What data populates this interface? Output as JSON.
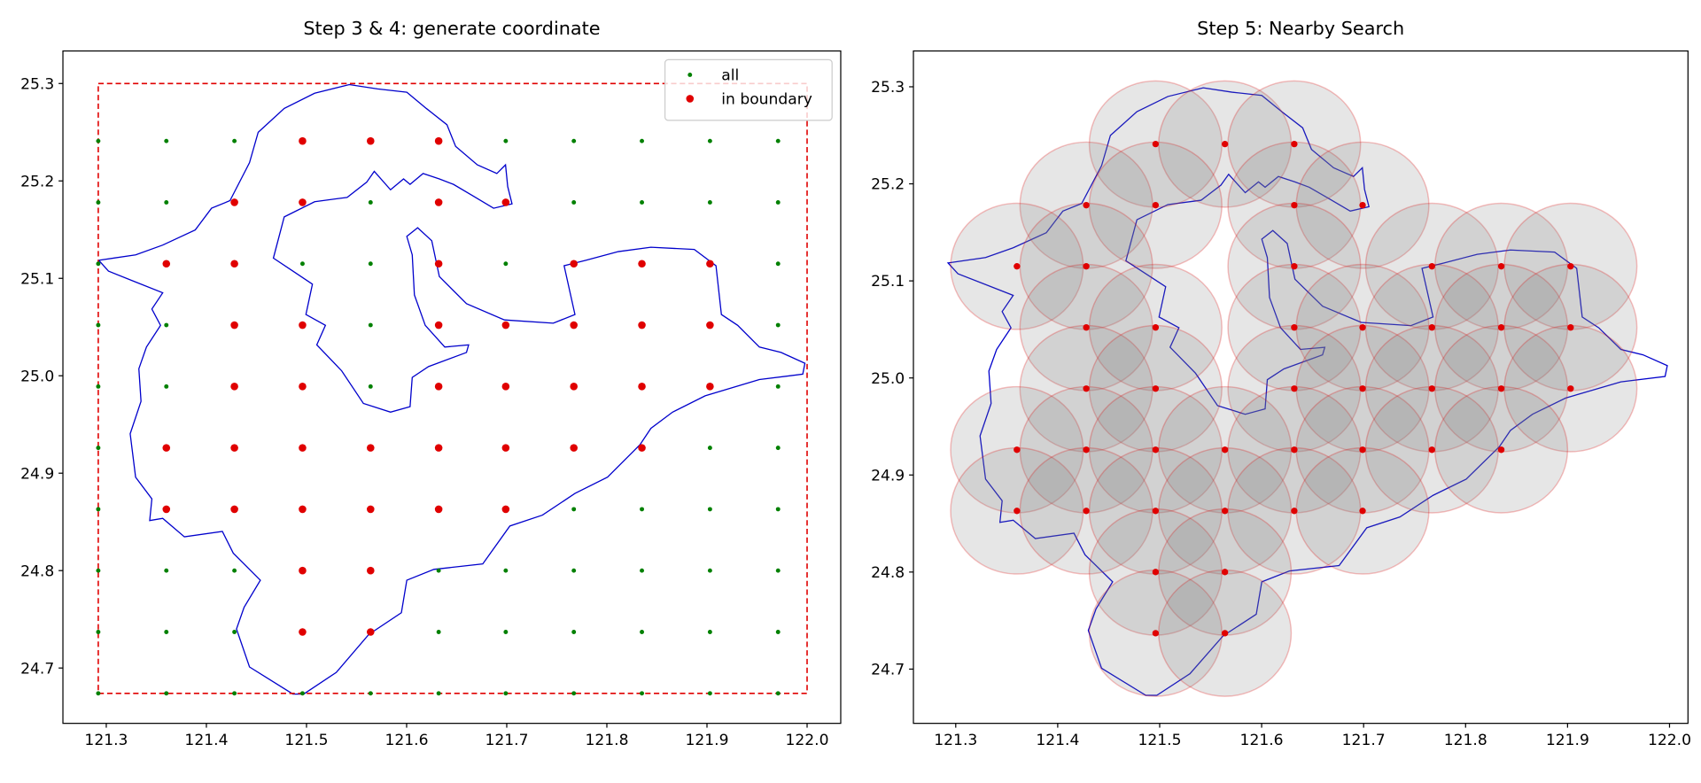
{
  "chart_data": [
    {
      "type": "scatter",
      "title": "Step 3 & 4: generate coordinate",
      "xlim": [
        121.2567,
        122.0336
      ],
      "ylim": [
        24.6432,
        25.3334
      ],
      "xticks": [
        121.3,
        121.4,
        121.5,
        121.6,
        121.7,
        121.8,
        121.9,
        {
          "value": 122,
          "label": "122.0"
        }
      ],
      "yticks": [
        24.7,
        24.8,
        24.9,
        {
          "value": 25,
          "label": "25.0"
        },
        25.1,
        25.2,
        25.3
      ],
      "legend": "upper right",
      "bounding_box": {
        "x": [
          121.292,
          122.0
        ],
        "y": [
          24.674,
          25.3
        ],
        "color": "#e00000"
      },
      "series": [
        {
          "name": "all",
          "color": "#008000",
          "x": [
            121.292,
            121.36,
            121.428,
            121.496,
            121.564,
            121.632,
            121.699,
            121.767,
            121.835,
            121.903,
            121.971,
            121.292,
            121.36,
            121.428,
            121.496,
            121.564,
            121.632,
            121.699,
            121.767,
            121.835,
            121.903,
            121.971,
            121.292,
            121.36,
            121.428,
            121.496,
            121.564,
            121.632,
            121.699,
            121.767,
            121.835,
            121.903,
            121.971,
            121.292,
            121.36,
            121.428,
            121.496,
            121.564,
            121.632,
            121.699,
            121.767,
            121.835,
            121.903,
            121.971,
            121.292,
            121.36,
            121.428,
            121.496,
            121.564,
            121.632,
            121.699,
            121.767,
            121.835,
            121.903,
            121.971,
            121.292,
            121.36,
            121.428,
            121.496,
            121.564,
            121.632,
            121.699,
            121.767,
            121.835,
            121.903,
            121.971,
            121.292,
            121.36,
            121.428,
            121.496,
            121.564,
            121.632,
            121.699,
            121.767,
            121.835,
            121.903,
            121.971,
            121.292,
            121.36,
            121.428,
            121.496,
            121.564,
            121.632,
            121.699,
            121.767,
            121.835,
            121.903,
            121.971,
            121.292,
            121.36,
            121.428,
            121.496,
            121.564,
            121.632,
            121.699,
            121.767,
            121.835,
            121.903,
            121.971,
            121.292,
            121.36,
            121.428,
            121.496,
            121.564,
            121.632,
            121.699,
            121.767,
            121.835,
            121.903,
            121.971
          ],
          "y": [
            25.241,
            25.241,
            25.241,
            25.241,
            25.241,
            25.241,
            25.241,
            25.241,
            25.241,
            25.241,
            25.241,
            25.178,
            25.178,
            25.178,
            25.178,
            25.178,
            25.178,
            25.178,
            25.178,
            25.178,
            25.178,
            25.178,
            25.115,
            25.115,
            25.115,
            25.115,
            25.115,
            25.115,
            25.115,
            25.115,
            25.115,
            25.115,
            25.115,
            25.052,
            25.052,
            25.052,
            25.052,
            25.052,
            25.052,
            25.052,
            25.052,
            25.052,
            25.052,
            25.052,
            24.989,
            24.989,
            24.989,
            24.989,
            24.989,
            24.989,
            24.989,
            24.989,
            24.989,
            24.989,
            24.989,
            24.926,
            24.926,
            24.926,
            24.926,
            24.926,
            24.926,
            24.926,
            24.926,
            24.926,
            24.926,
            24.926,
            24.863,
            24.863,
            24.863,
            24.863,
            24.863,
            24.863,
            24.863,
            24.863,
            24.863,
            24.863,
            24.863,
            24.8,
            24.8,
            24.8,
            24.8,
            24.8,
            24.8,
            24.8,
            24.8,
            24.8,
            24.8,
            24.8,
            24.737,
            24.737,
            24.737,
            24.737,
            24.737,
            24.737,
            24.737,
            24.737,
            24.737,
            24.737,
            24.737,
            24.674,
            24.674,
            24.674,
            24.674,
            24.674,
            24.674,
            24.674,
            24.674,
            24.674,
            24.674,
            24.674
          ]
        },
        {
          "name": "in boundary",
          "color": "#e00000",
          "x": [
            121.496,
            121.564,
            121.632,
            121.428,
            121.496,
            121.632,
            121.699,
            121.36,
            121.428,
            121.632,
            121.767,
            121.835,
            121.903,
            121.428,
            121.496,
            121.632,
            121.699,
            121.767,
            121.835,
            121.903,
            121.428,
            121.496,
            121.632,
            121.699,
            121.767,
            121.835,
            121.903,
            121.36,
            121.428,
            121.496,
            121.564,
            121.632,
            121.699,
            121.767,
            121.835,
            121.36,
            121.428,
            121.496,
            121.564,
            121.632,
            121.699,
            121.496,
            121.564,
            121.496,
            121.564
          ],
          "y": [
            25.241,
            25.241,
            25.241,
            25.178,
            25.178,
            25.178,
            25.178,
            25.115,
            25.115,
            25.115,
            25.115,
            25.115,
            25.115,
            25.052,
            25.052,
            25.052,
            25.052,
            25.052,
            25.052,
            25.052,
            24.989,
            24.989,
            24.989,
            24.989,
            24.989,
            24.989,
            24.989,
            24.926,
            24.926,
            24.926,
            24.926,
            24.926,
            24.926,
            24.926,
            24.926,
            24.863,
            24.863,
            24.863,
            24.863,
            24.863,
            24.863,
            24.8,
            24.8,
            24.737,
            24.737
          ]
        }
      ]
    },
    {
      "type": "scatter",
      "title": "Step 5: Nearby Search",
      "xlim": [
        121.2585,
        122.0181
      ],
      "ylim": [
        24.6441,
        25.3369
      ],
      "xticks": [
        121.3,
        121.4,
        121.5,
        121.6,
        121.7,
        121.8,
        121.9,
        {
          "value": 122,
          "label": "122.0"
        }
      ],
      "yticks": [
        24.7,
        24.8,
        24.9,
        {
          "value": 25,
          "label": "25.0"
        },
        25.1,
        25.2,
        25.3
      ],
      "series": [
        {
          "color": "#e00000",
          "fill_color": "#808080",
          "radius": 0.065,
          "x": [
            121.496,
            121.564,
            121.632,
            121.428,
            121.496,
            121.632,
            121.699,
            121.36,
            121.428,
            121.632,
            121.767,
            121.835,
            121.903,
            121.428,
            121.496,
            121.632,
            121.699,
            121.767,
            121.835,
            121.903,
            121.428,
            121.496,
            121.632,
            121.699,
            121.767,
            121.835,
            121.903,
            121.36,
            121.428,
            121.496,
            121.564,
            121.632,
            121.699,
            121.767,
            121.835,
            121.36,
            121.428,
            121.496,
            121.564,
            121.632,
            121.699,
            121.496,
            121.564,
            121.496,
            121.564
          ],
          "y": [
            25.241,
            25.241,
            25.241,
            25.178,
            25.178,
            25.178,
            25.178,
            25.115,
            25.115,
            25.115,
            25.115,
            25.115,
            25.115,
            25.052,
            25.052,
            25.052,
            25.052,
            25.052,
            25.052,
            25.052,
            24.989,
            24.989,
            24.989,
            24.989,
            24.989,
            24.989,
            24.989,
            24.926,
            24.926,
            24.926,
            24.926,
            24.926,
            24.926,
            24.926,
            24.926,
            24.863,
            24.863,
            24.863,
            24.863,
            24.863,
            24.863,
            24.8,
            24.8,
            24.737,
            24.737
          ]
        }
      ]
    }
  ]
}
